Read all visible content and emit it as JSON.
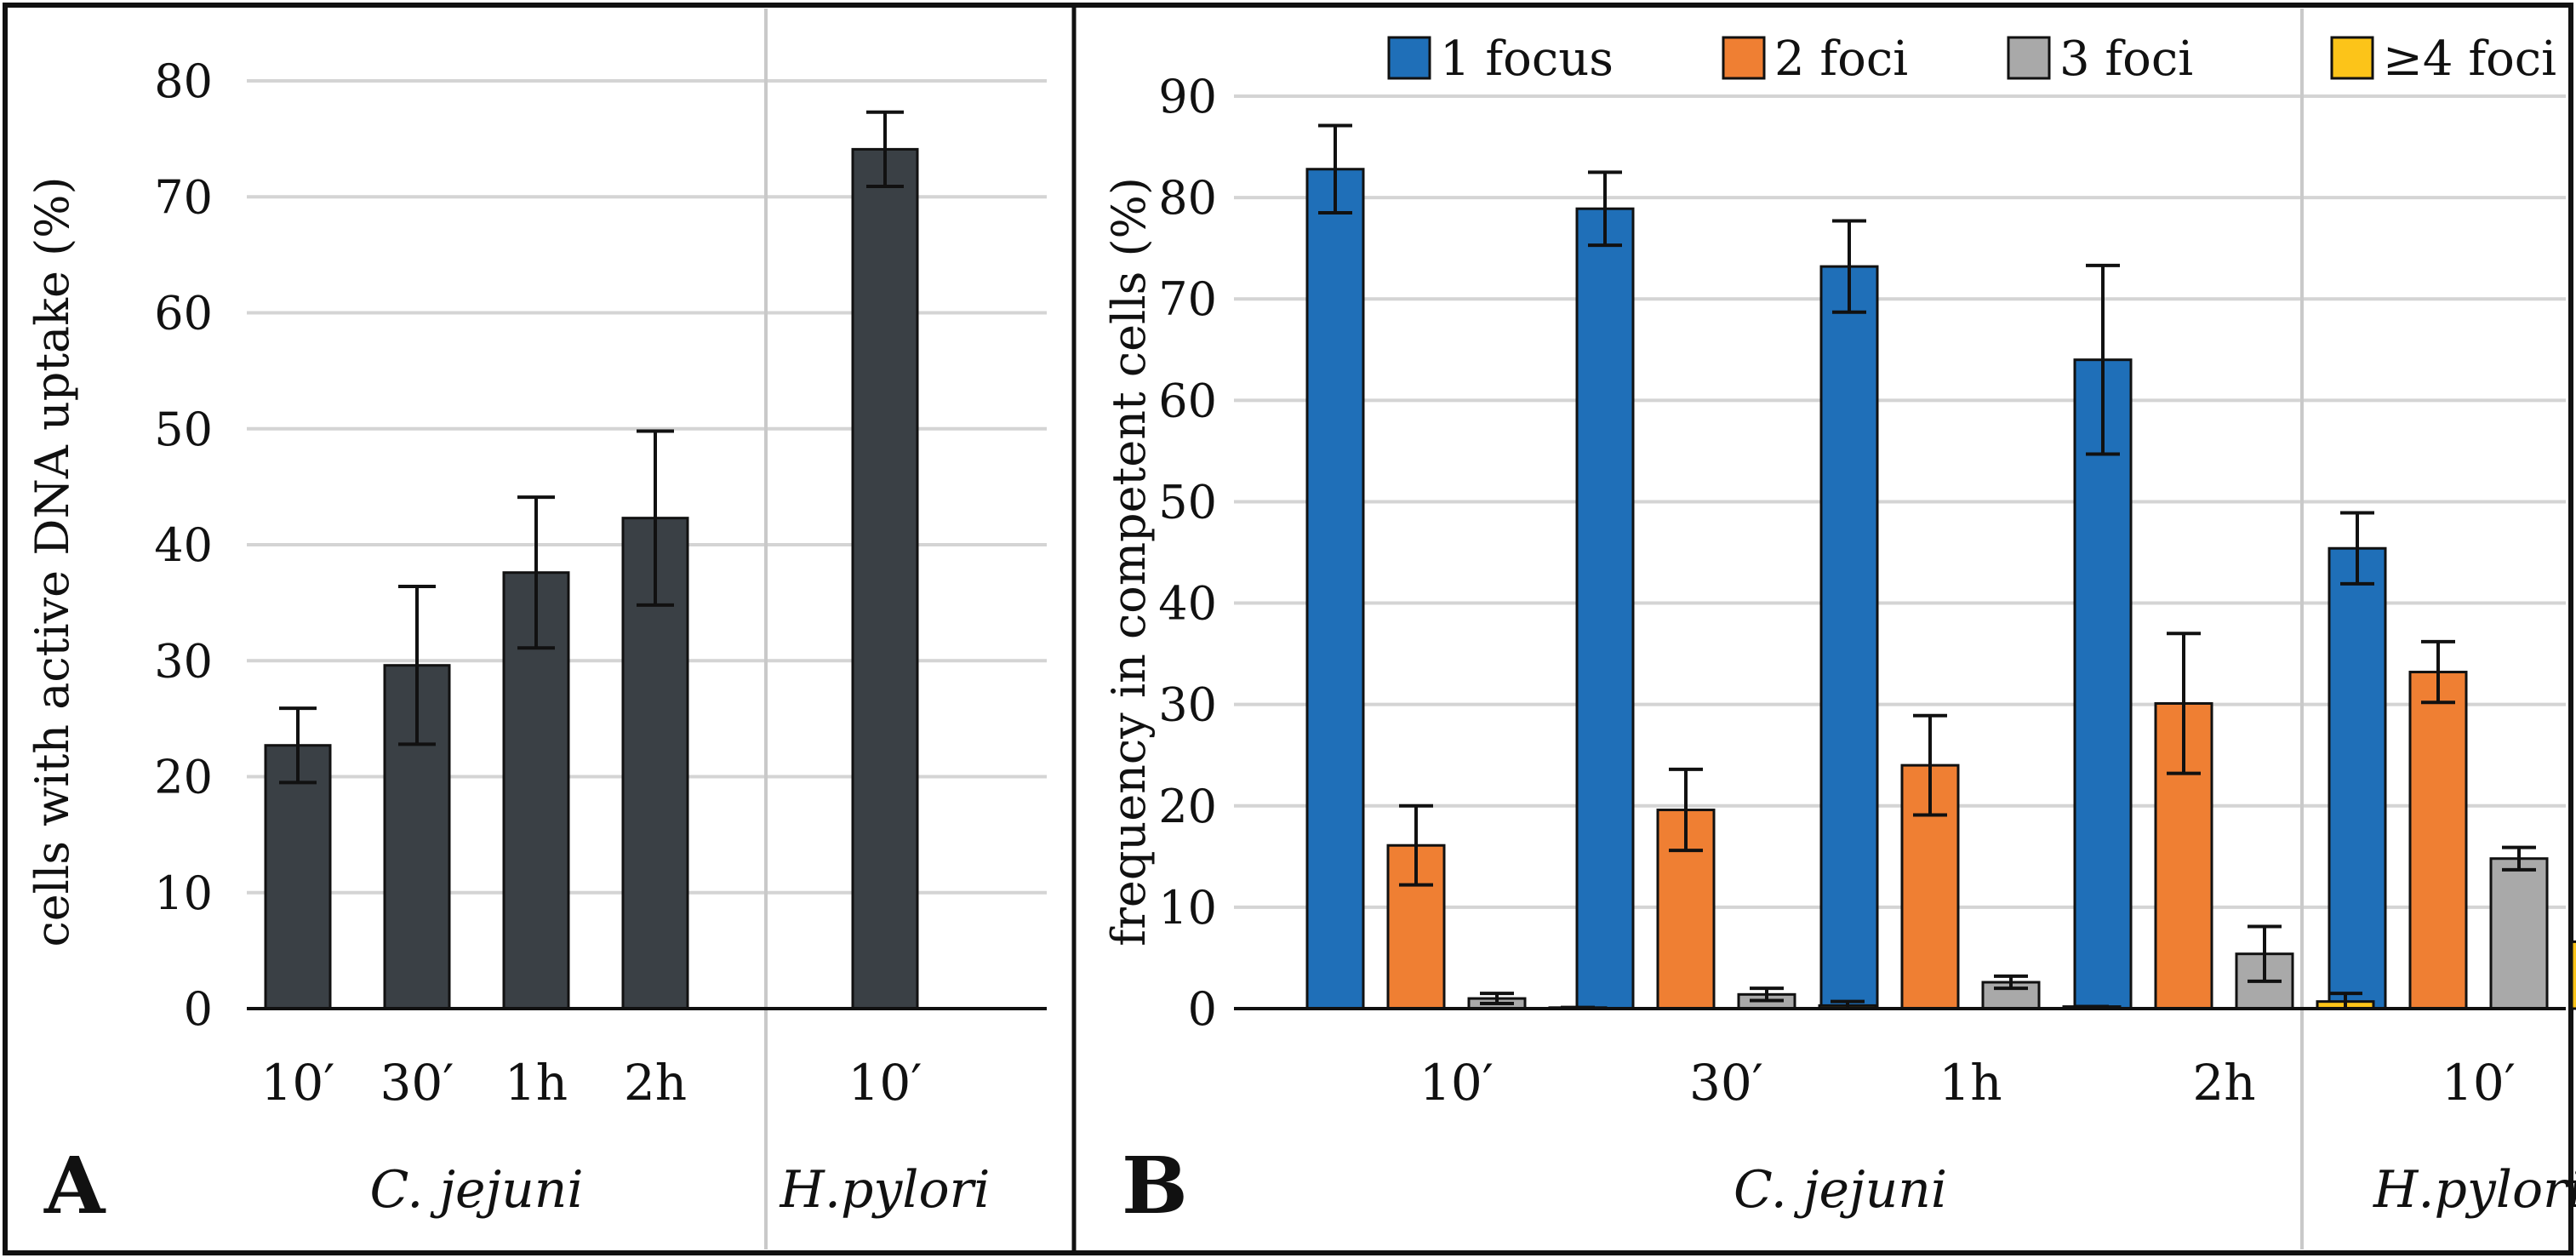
{
  "colors": {
    "panel_a_bar": "#3a4045",
    "focus1": "#1f6fb8",
    "foci2": "#ef7f33",
    "foci3": "#a9a9a9",
    "foci4": "#fcc419",
    "grid": "#d4d4d4",
    "divider": "#c9c9c9"
  },
  "chart_data": [
    {
      "panel": "A",
      "type": "bar",
      "ylabel": "cells with active DNA uptake (%)",
      "ylim": [
        0,
        80
      ],
      "yticks": [
        0,
        10,
        20,
        30,
        40,
        50,
        60,
        70,
        80
      ],
      "grid": true,
      "groups": [
        "C. jejuni",
        "H.pylori"
      ],
      "categories": [
        "10′",
        "30′",
        "1h",
        "2h",
        "10′"
      ],
      "category_groups": [
        0,
        0,
        0,
        0,
        1
      ],
      "values": [
        22.7,
        29.6,
        37.6,
        42.3,
        74.1
      ],
      "errors": [
        3.2,
        6.8,
        6.5,
        7.5,
        3.2
      ]
    },
    {
      "panel": "B",
      "type": "bar",
      "ylabel": "frequency in competent cells (%)",
      "ylim": [
        0,
        90
      ],
      "yticks": [
        0,
        10,
        20,
        30,
        40,
        50,
        60,
        70,
        80,
        90
      ],
      "grid": true,
      "legend_position": "top",
      "groups": [
        "C. jejuni",
        "H.pylori"
      ],
      "categories": [
        "10′",
        "30′",
        "1h",
        "2h",
        "10′"
      ],
      "category_groups": [
        0,
        0,
        0,
        0,
        1
      ],
      "series": [
        {
          "name": "1 focus",
          "values": [
            82.8,
            78.9,
            73.2,
            64.0,
            45.4
          ],
          "errors": [
            4.3,
            3.6,
            4.5,
            9.3,
            3.5
          ]
        },
        {
          "name": "2 foci",
          "values": [
            16.1,
            19.6,
            24.0,
            30.1,
            33.2
          ],
          "errors": [
            3.9,
            4.0,
            4.9,
            6.9,
            3.0
          ]
        },
        {
          "name": "3 foci",
          "values": [
            1.0,
            1.4,
            2.6,
            5.4,
            14.8
          ],
          "errors": [
            0.5,
            0.6,
            0.6,
            2.7,
            1.1
          ]
        },
        {
          "name": "≥4 foci",
          "values": [
            0.1,
            0.3,
            0.2,
            0.7,
            6.6
          ],
          "errors": [
            0.0,
            0.4,
            0.0,
            0.8,
            1.2
          ]
        }
      ]
    }
  ],
  "panel_labels": [
    "A",
    "B"
  ]
}
